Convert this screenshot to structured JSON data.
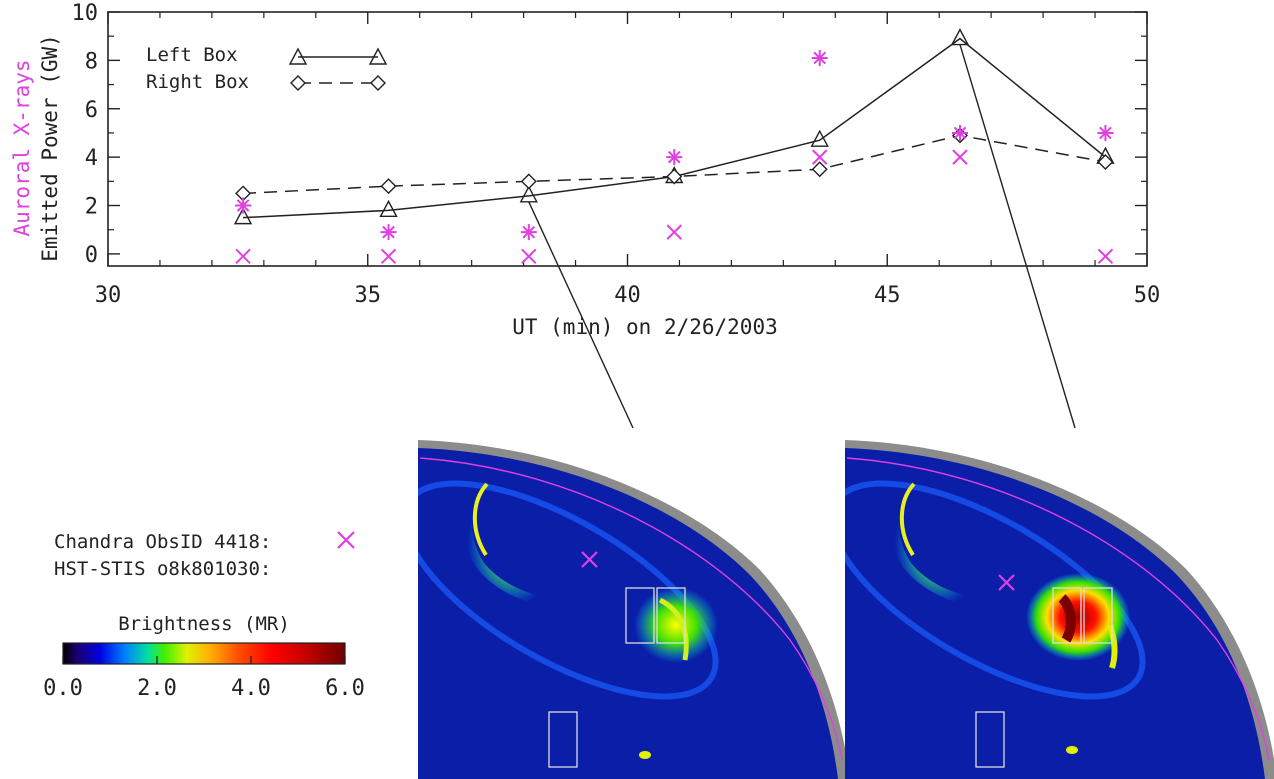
{
  "chart_data": {
    "type": "line",
    "title": "",
    "xlabel": "UT (min) on 2/26/2003",
    "ylabel": "Emitted Power (GW)",
    "ylabel_secondary": "Auroral X-rays",
    "xlim": [
      30,
      50
    ],
    "ylim": [
      -0.5,
      10
    ],
    "x_ticks": [
      30,
      35,
      40,
      45,
      50
    ],
    "y_ticks": [
      0,
      2,
      4,
      6,
      8,
      10
    ],
    "grid": false,
    "legend_position": "top-left",
    "series": [
      {
        "name": "Left Box",
        "line_style": "solid",
        "marker": "triangle",
        "color": "#222222",
        "x": [
          32.6,
          35.4,
          38.1,
          40.9,
          43.7,
          46.4,
          49.2
        ],
        "y": [
          1.5,
          1.8,
          2.4,
          3.2,
          4.7,
          8.9,
          4.0
        ]
      },
      {
        "name": "Right Box",
        "line_style": "dashed",
        "marker": "diamond",
        "color": "#222222",
        "x": [
          32.6,
          35.4,
          38.1,
          40.9,
          43.7,
          46.4,
          49.2
        ],
        "y": [
          2.5,
          2.8,
          3.0,
          3.2,
          3.5,
          4.9,
          3.8
        ]
      }
    ],
    "xray_points": {
      "color": "#e040e0",
      "asterisks": [
        {
          "x": 32.6,
          "y": 2.0
        },
        {
          "x": 35.4,
          "y": 0.9
        },
        {
          "x": 38.1,
          "y": 0.9
        },
        {
          "x": 40.9,
          "y": 4.0
        },
        {
          "x": 43.7,
          "y": 8.1
        },
        {
          "x": 46.4,
          "y": 5.0
        },
        {
          "x": 49.2,
          "y": 5.0
        }
      ],
      "crosses": [
        {
          "x": 32.6,
          "y": -0.1
        },
        {
          "x": 35.4,
          "y": -0.1
        },
        {
          "x": 38.1,
          "y": -0.1
        },
        {
          "x": 40.9,
          "y": 0.9
        },
        {
          "x": 43.7,
          "y": 4.0
        },
        {
          "x": 46.4,
          "y": 4.0
        },
        {
          "x": 49.2,
          "y": -0.1
        }
      ]
    }
  },
  "legend_panel": {
    "chandra_label": "Chandra ObsID 4418:",
    "hst_label": "HST-STIS o8k801030:",
    "colorbar_title": "Brightness (MR)",
    "colorbar_ticks": [
      "0.0",
      "2.0",
      "4.0",
      "6.0"
    ],
    "colorbar_range": [
      0,
      6
    ]
  },
  "images": [
    {
      "time_min": 38.1
    },
    {
      "time_min": 46.4
    }
  ],
  "colors": {
    "background": "#ffffff",
    "ink": "#222222",
    "magenta": "#e040e0",
    "image_bg": "#0a1ea8",
    "limb": "#909090"
  }
}
